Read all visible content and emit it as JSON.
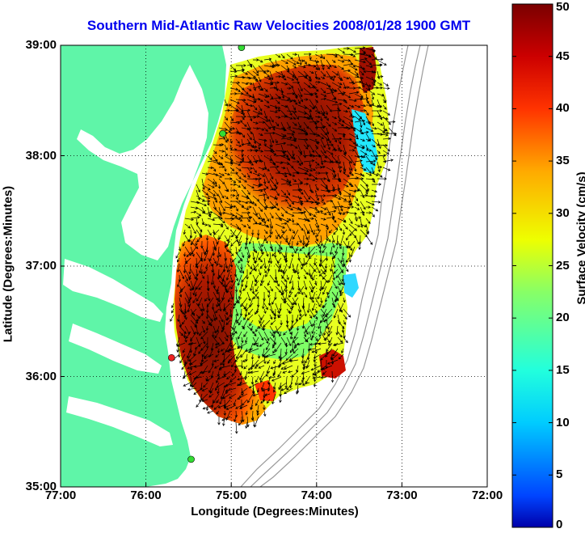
{
  "title": "Southern Mid-Atlantic Raw Velocities 2008/01/28 1900 GMT",
  "xlabel": "Longitude (Degrees:Minutes)",
  "ylabel": "Latitude (Degrees:Minutes)",
  "colorbar_label": "Surface Velocity (cm/s)",
  "x_ticks": [
    {
      "value": -77,
      "label": "77:00"
    },
    {
      "value": -76,
      "label": "76:00"
    },
    {
      "value": -75,
      "label": "75:00"
    },
    {
      "value": -74,
      "label": "74:00"
    },
    {
      "value": -73,
      "label": "73:00"
    },
    {
      "value": -72,
      "label": "72:00"
    }
  ],
  "y_ticks": [
    {
      "value": 35,
      "label": "35:00"
    },
    {
      "value": 36,
      "label": "36:00"
    },
    {
      "value": 37,
      "label": "37:00"
    },
    {
      "value": 38,
      "label": "38:00"
    },
    {
      "value": 39,
      "label": "39:00"
    }
  ],
  "colorbar_ticks": [
    {
      "value": 0,
      "label": "0"
    },
    {
      "value": 5,
      "label": "5"
    },
    {
      "value": 10,
      "label": "10"
    },
    {
      "value": 15,
      "label": "15"
    },
    {
      "value": 20,
      "label": "20"
    },
    {
      "value": 25,
      "label": "25"
    },
    {
      "value": 30,
      "label": "30"
    },
    {
      "value": 35,
      "label": "35"
    },
    {
      "value": 40,
      "label": "40"
    },
    {
      "value": 45,
      "label": "45"
    },
    {
      "value": 50,
      "label": "50"
    }
  ],
  "colors": {
    "land": "#5ff5a8",
    "title": "#0000ee",
    "station_active": "#33dd33",
    "station_inactive": "#ee2222",
    "bathymetry": "#9a9a9a"
  },
  "map": {
    "lon_range": [
      -77,
      -72
    ],
    "lat_range": [
      35,
      39
    ],
    "grid": true,
    "colormap": "jet",
    "velocity_range_cm_s": [
      0,
      50
    ],
    "stations": [
      {
        "lon": -74.88,
        "lat": 38.98,
        "status": "active"
      },
      {
        "lon": -75.1,
        "lat": 38.2,
        "status": "active"
      },
      {
        "lon": -75.7,
        "lat": 36.17,
        "status": "inactive"
      },
      {
        "lon": -75.47,
        "lat": 35.25,
        "status": "active"
      }
    ]
  }
}
